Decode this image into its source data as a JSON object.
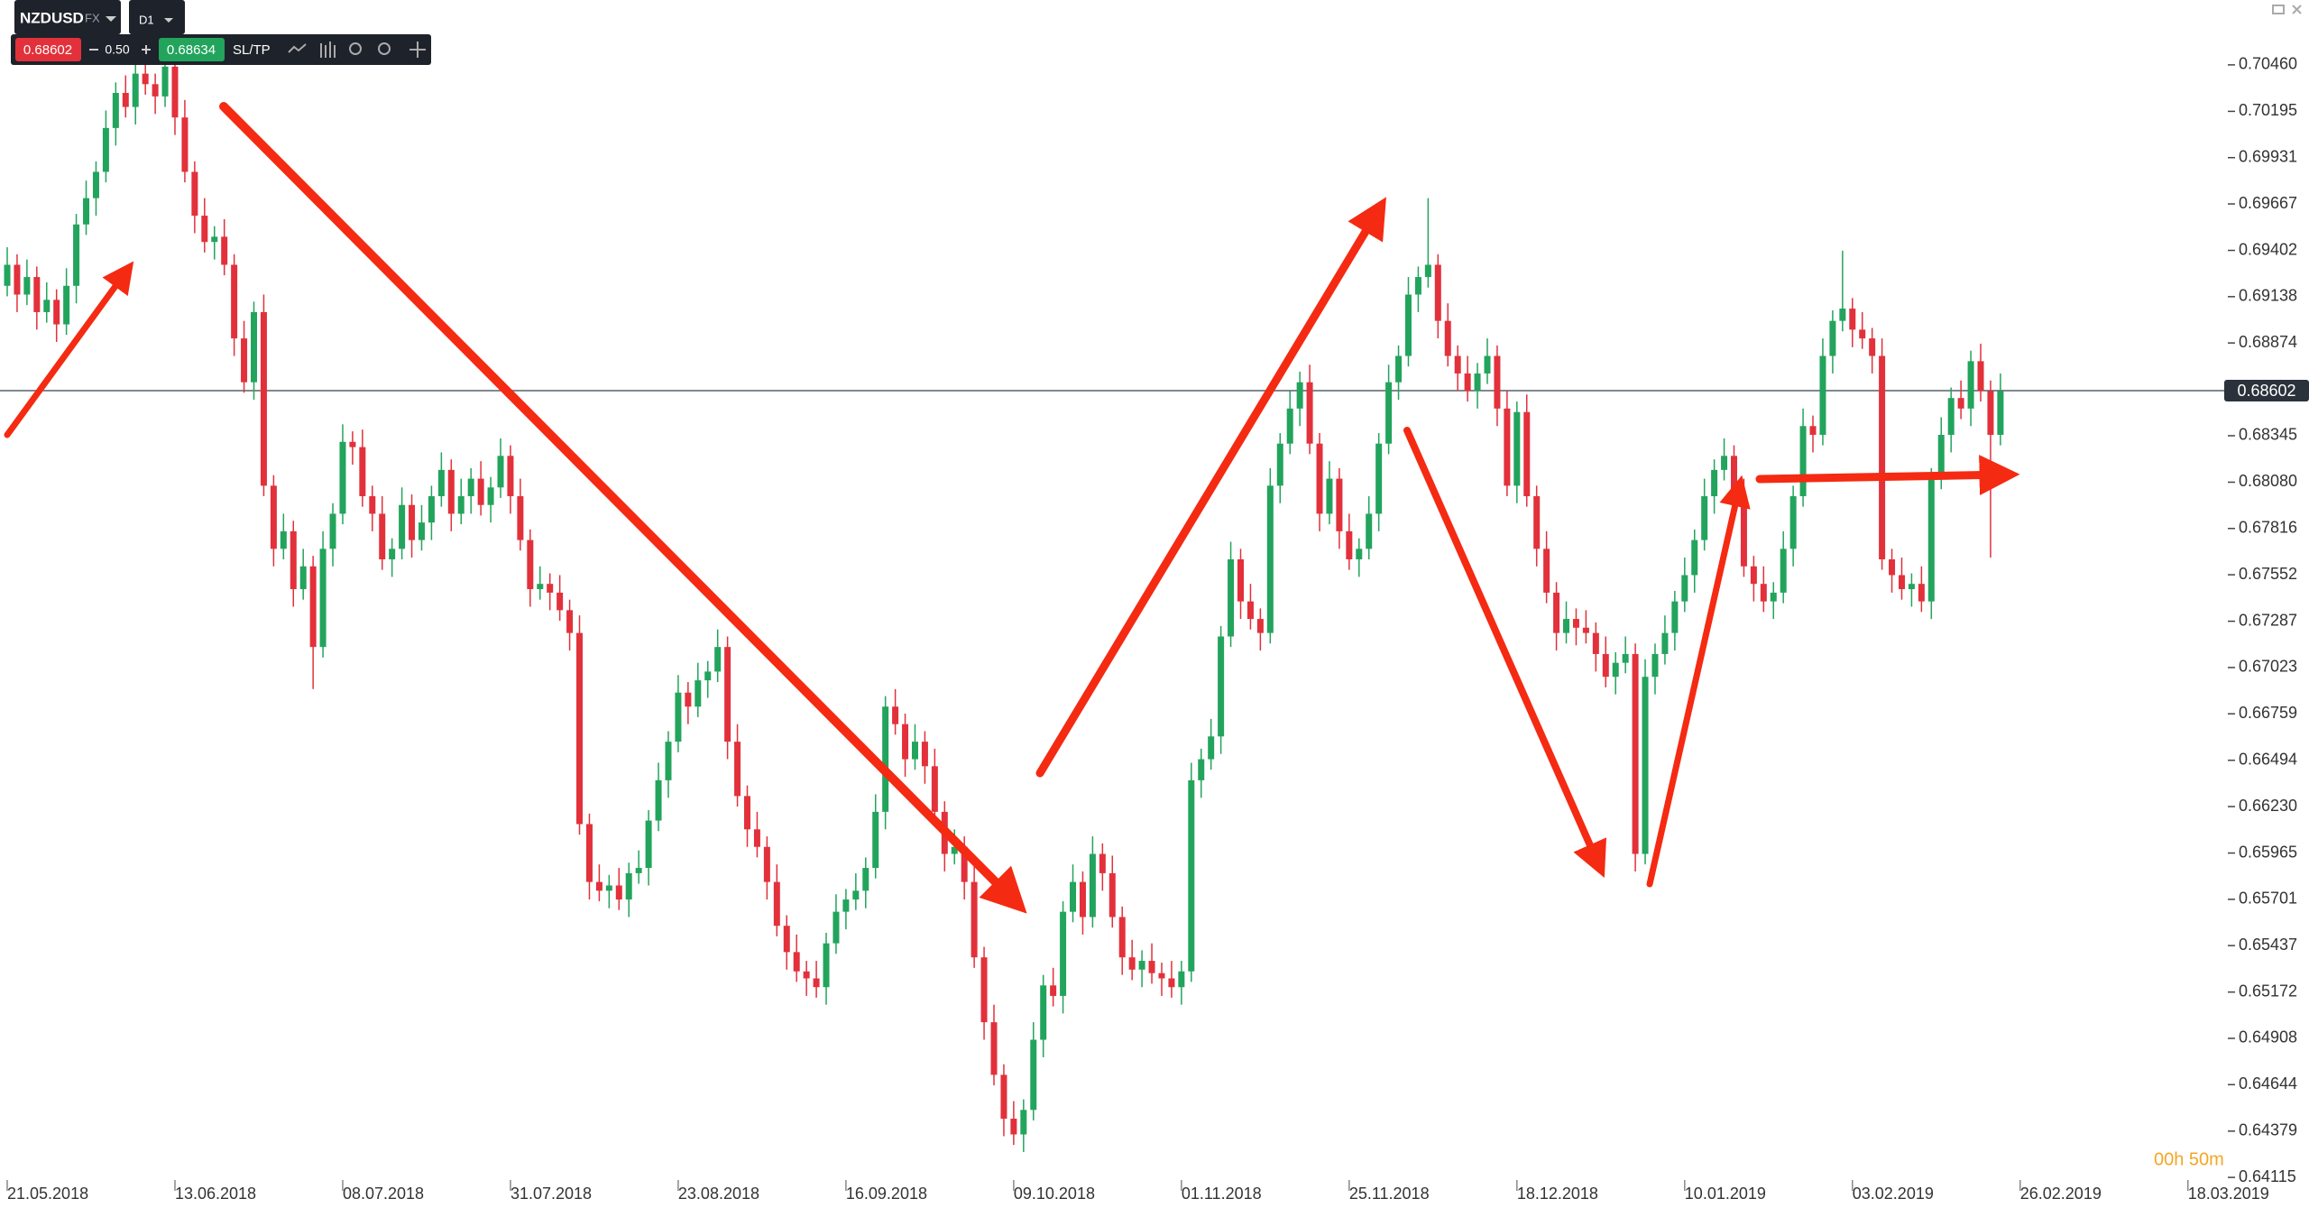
{
  "toolbar": {
    "symbol": "NZDUSD",
    "market": "FX",
    "timeframe": "D1",
    "bid": "0.68602",
    "spread": "0.50",
    "ask": "0.68634",
    "sltp": "SL/TP"
  },
  "timer": "00h 50m",
  "chart_data": {
    "type": "candlestick",
    "up_color": "#22a45d",
    "down_color": "#e2313b",
    "ylim": [
      0.641,
      0.7083
    ],
    "yticks": [
      {
        "value": 0.7046,
        "label": "0.70460"
      },
      {
        "value": 0.70195,
        "label": "0.70195"
      },
      {
        "value": 0.69931,
        "label": "0.69931"
      },
      {
        "value": 0.69667,
        "label": "0.69667"
      },
      {
        "value": 0.69402,
        "label": "0.69402"
      },
      {
        "value": 0.69138,
        "label": "0.69138"
      },
      {
        "value": 0.68874,
        "label": "0.68874"
      },
      {
        "value": 0.68345,
        "label": "0.68345"
      },
      {
        "value": 0.6808,
        "label": "0.68080"
      },
      {
        "value": 0.67816,
        "label": "0.67816"
      },
      {
        "value": 0.67552,
        "label": "0.67552"
      },
      {
        "value": 0.67287,
        "label": "0.67287"
      },
      {
        "value": 0.67023,
        "label": "0.67023"
      },
      {
        "value": 0.66759,
        "label": "0.66759"
      },
      {
        "value": 0.66494,
        "label": "0.66494"
      },
      {
        "value": 0.6623,
        "label": "0.66230"
      },
      {
        "value": 0.65965,
        "label": "0.65965"
      },
      {
        "value": 0.65701,
        "label": "0.65701"
      },
      {
        "value": 0.65437,
        "label": "0.65437"
      },
      {
        "value": 0.65172,
        "label": "0.65172"
      },
      {
        "value": 0.64908,
        "label": "0.64908"
      },
      {
        "value": 0.64644,
        "label": "0.64644"
      },
      {
        "value": 0.64379,
        "label": "0.64379"
      },
      {
        "value": 0.64115,
        "label": "0.64115"
      }
    ],
    "xticks": [
      {
        "value": 0,
        "label": "21.05.2018"
      },
      {
        "value": 17,
        "label": "13.06.2018"
      },
      {
        "value": 34,
        "label": "08.07.2018"
      },
      {
        "value": 51,
        "label": "31.07.2018"
      },
      {
        "value": 68,
        "label": "23.08.2018"
      },
      {
        "value": 85,
        "label": "16.09.2018"
      },
      {
        "value": 102,
        "label": "09.10.2018"
      },
      {
        "value": 119,
        "label": "01.11.2018"
      },
      {
        "value": 136,
        "label": "25.11.2018"
      },
      {
        "value": 153,
        "label": "18.12.2018"
      },
      {
        "value": 170,
        "label": "10.01.2019"
      },
      {
        "value": 187,
        "label": "03.02.2019"
      },
      {
        "value": 204,
        "label": "26.02.2019"
      },
      {
        "value": 221,
        "label": "18.03.2019"
      }
    ],
    "last_price": {
      "value": 0.68602,
      "label": "0.68602"
    },
    "open": [
      0.692,
      0.6932,
      0.6915,
      0.6925,
      0.6905,
      0.6912,
      0.6898,
      0.692,
      0.6955,
      0.697,
      0.6985,
      0.701,
      0.703,
      0.7022,
      0.7041,
      0.7035,
      0.7028,
      0.7045,
      0.7016,
      0.6985,
      0.696,
      0.6945,
      0.6948,
      0.6932,
      0.689,
      0.6865,
      0.6905,
      0.6806,
      0.677,
      0.678,
      0.6747,
      0.676,
      0.6714,
      0.677,
      0.679,
      0.6831,
      0.6828,
      0.68,
      0.679,
      0.6764,
      0.677,
      0.6795,
      0.6775,
      0.6785,
      0.68,
      0.6815,
      0.679,
      0.68,
      0.681,
      0.6795,
      0.6805,
      0.6823,
      0.68,
      0.6775,
      0.6747,
      0.675,
      0.6745,
      0.6735,
      0.6722,
      0.6613,
      0.658,
      0.6575,
      0.6578,
      0.657,
      0.6585,
      0.6588,
      0.6615,
      0.6638,
      0.666,
      0.6688,
      0.668,
      0.6695,
      0.67,
      0.6714,
      0.666,
      0.6629,
      0.661,
      0.66,
      0.658,
      0.6555,
      0.654,
      0.6529,
      0.6525,
      0.652,
      0.6545,
      0.6563,
      0.657,
      0.6575,
      0.6588,
      0.662,
      0.668,
      0.667,
      0.665,
      0.666,
      0.6646,
      0.662,
      0.6596,
      0.66,
      0.658,
      0.6537,
      0.65,
      0.647,
      0.6445,
      0.6436,
      0.645,
      0.649,
      0.6521,
      0.6515,
      0.6563,
      0.658,
      0.656,
      0.6596,
      0.6585,
      0.656,
      0.6537,
      0.653,
      0.6535,
      0.6528,
      0.6525,
      0.652,
      0.6529,
      0.6638,
      0.665,
      0.6663,
      0.672,
      0.6764,
      0.674,
      0.673,
      0.6722,
      0.6806,
      0.683,
      0.685,
      0.6865,
      0.683,
      0.679,
      0.681,
      0.678,
      0.6764,
      0.677,
      0.679,
      0.683,
      0.6865,
      0.688,
      0.6915,
      0.6925,
      0.6932,
      0.69,
      0.688,
      0.687,
      0.686,
      0.687,
      0.688,
      0.685,
      0.6806,
      0.6848,
      0.68,
      0.677,
      0.6745,
      0.6722,
      0.673,
      0.6725,
      0.6722,
      0.671,
      0.6697,
      0.6705,
      0.671,
      0.6596,
      0.6697,
      0.671,
      0.6722,
      0.674,
      0.6755,
      0.6775,
      0.68,
      0.6815,
      0.6823,
      0.68,
      0.676,
      0.675,
      0.674,
      0.6745,
      0.677,
      0.68,
      0.684,
      0.6835,
      0.688,
      0.69,
      0.6907,
      0.6895,
      0.689,
      0.688,
      0.6764,
      0.6755,
      0.6747,
      0.675,
      0.674,
      0.681,
      0.6835,
      0.6856,
      0.685,
      0.6877,
      0.686,
      0.6835
    ],
    "high": [
      0.6942,
      0.6938,
      0.6935,
      0.6931,
      0.6922,
      0.6918,
      0.693,
      0.6961,
      0.698,
      0.6991,
      0.702,
      0.7036,
      0.704,
      0.7047,
      0.7051,
      0.7041,
      0.7055,
      0.7051,
      0.7026,
      0.6991,
      0.697,
      0.6954,
      0.6958,
      0.6938,
      0.69,
      0.6911,
      0.6915,
      0.6812,
      0.679,
      0.6786,
      0.677,
      0.6766,
      0.678,
      0.6796,
      0.6841,
      0.6837,
      0.6838,
      0.6806,
      0.68,
      0.6776,
      0.6805,
      0.6801,
      0.6795,
      0.6806,
      0.6825,
      0.6821,
      0.681,
      0.6816,
      0.682,
      0.6811,
      0.6833,
      0.6829,
      0.681,
      0.6781,
      0.676,
      0.6756,
      0.6755,
      0.6741,
      0.6732,
      0.6619,
      0.659,
      0.6584,
      0.6588,
      0.6591,
      0.6598,
      0.6621,
      0.6648,
      0.6666,
      0.6698,
      0.6694,
      0.6705,
      0.6706,
      0.6724,
      0.672,
      0.667,
      0.6635,
      0.662,
      0.6606,
      0.659,
      0.6561,
      0.655,
      0.6535,
      0.6535,
      0.6551,
      0.6573,
      0.6576,
      0.6585,
      0.6594,
      0.663,
      0.6686,
      0.669,
      0.6676,
      0.667,
      0.6666,
      0.6656,
      0.6626,
      0.661,
      0.6606,
      0.659,
      0.6543,
      0.651,
      0.6476,
      0.6455,
      0.6456,
      0.65,
      0.6527,
      0.6531,
      0.6569,
      0.659,
      0.6586,
      0.6606,
      0.6602,
      0.6595,
      0.6566,
      0.6547,
      0.6541,
      0.6545,
      0.6534,
      0.6535,
      0.6535,
      0.6648,
      0.6656,
      0.6673,
      0.6726,
      0.6774,
      0.677,
      0.675,
      0.6736,
      0.6816,
      0.6836,
      0.686,
      0.6871,
      0.6875,
      0.6836,
      0.682,
      0.6816,
      0.679,
      0.6776,
      0.68,
      0.6836,
      0.6875,
      0.6886,
      0.6925,
      0.6931,
      0.697,
      0.6938,
      0.691,
      0.6886,
      0.688,
      0.6876,
      0.689,
      0.6886,
      0.686,
      0.6854,
      0.6858,
      0.6806,
      0.678,
      0.6751,
      0.674,
      0.6736,
      0.6735,
      0.6728,
      0.672,
      0.6711,
      0.672,
      0.6716,
      0.6707,
      0.6716,
      0.6732,
      0.6746,
      0.6765,
      0.6781,
      0.681,
      0.6821,
      0.6833,
      0.6829,
      0.681,
      0.6766,
      0.676,
      0.6751,
      0.678,
      0.6806,
      0.685,
      0.6846,
      0.689,
      0.6906,
      0.694,
      0.6913,
      0.6905,
      0.6896,
      0.689,
      0.677,
      0.6765,
      0.6756,
      0.676,
      0.6816,
      0.6845,
      0.6862,
      0.6866,
      0.6883,
      0.6887,
      0.6866,
      0.687
    ],
    "low": [
      0.6914,
      0.6905,
      0.6909,
      0.6895,
      0.6899,
      0.6888,
      0.6892,
      0.691,
      0.6949,
      0.696,
      0.6979,
      0.7,
      0.7016,
      0.7012,
      0.7029,
      0.7018,
      0.7022,
      0.7006,
      0.6979,
      0.695,
      0.6939,
      0.6935,
      0.6926,
      0.688,
      0.6859,
      0.6855,
      0.68,
      0.676,
      0.6764,
      0.6737,
      0.6741,
      0.669,
      0.6708,
      0.676,
      0.6784,
      0.6818,
      0.6794,
      0.678,
      0.6758,
      0.6754,
      0.6764,
      0.6765,
      0.6769,
      0.6775,
      0.6794,
      0.678,
      0.6784,
      0.679,
      0.6789,
      0.6785,
      0.6799,
      0.679,
      0.6769,
      0.6737,
      0.6741,
      0.6735,
      0.6729,
      0.6712,
      0.6607,
      0.657,
      0.6569,
      0.6565,
      0.6564,
      0.656,
      0.6579,
      0.6578,
      0.6609,
      0.6628,
      0.6654,
      0.667,
      0.6674,
      0.6685,
      0.6694,
      0.665,
      0.6623,
      0.66,
      0.6594,
      0.657,
      0.6549,
      0.653,
      0.6523,
      0.6515,
      0.6514,
      0.651,
      0.6539,
      0.6553,
      0.6564,
      0.6565,
      0.6582,
      0.661,
      0.6664,
      0.664,
      0.6644,
      0.6636,
      0.6614,
      0.6586,
      0.659,
      0.657,
      0.6531,
      0.649,
      0.6464,
      0.6435,
      0.643,
      0.6426,
      0.6444,
      0.648,
      0.6509,
      0.6505,
      0.6557,
      0.655,
      0.6554,
      0.6575,
      0.6554,
      0.6527,
      0.6524,
      0.652,
      0.6522,
      0.6515,
      0.6514,
      0.651,
      0.6523,
      0.6628,
      0.6644,
      0.6653,
      0.6714,
      0.673,
      0.6724,
      0.6712,
      0.6716,
      0.6796,
      0.6824,
      0.684,
      0.6824,
      0.678,
      0.6784,
      0.677,
      0.6758,
      0.6754,
      0.6764,
      0.678,
      0.6824,
      0.6855,
      0.6874,
      0.6905,
      0.6919,
      0.689,
      0.6874,
      0.686,
      0.6854,
      0.685,
      0.6864,
      0.684,
      0.68,
      0.6796,
      0.6794,
      0.676,
      0.6739,
      0.6712,
      0.6716,
      0.6715,
      0.6716,
      0.67,
      0.6691,
      0.6687,
      0.6699,
      0.6586,
      0.659,
      0.6687,
      0.6704,
      0.6712,
      0.6734,
      0.6745,
      0.6769,
      0.679,
      0.6809,
      0.679,
      0.6754,
      0.674,
      0.6734,
      0.673,
      0.6739,
      0.676,
      0.6794,
      0.6825,
      0.6829,
      0.687,
      0.6894,
      0.6885,
      0.6884,
      0.687,
      0.6758,
      0.6745,
      0.6741,
      0.6737,
      0.6734,
      0.673,
      0.6804,
      0.6825,
      0.6844,
      0.684,
      0.6854,
      0.6765,
      0.6829
    ],
    "close": [
      0.6932,
      0.6915,
      0.6925,
      0.6905,
      0.6912,
      0.6898,
      0.692,
      0.6955,
      0.697,
      0.6985,
      0.701,
      0.703,
      0.7022,
      0.7041,
      0.7035,
      0.7028,
      0.7045,
      0.7016,
      0.6985,
      0.696,
      0.6945,
      0.6948,
      0.6932,
      0.689,
      0.6865,
      0.6905,
      0.6806,
      0.677,
      0.678,
      0.6747,
      0.676,
      0.6714,
      0.677,
      0.679,
      0.6831,
      0.6828,
      0.68,
      0.679,
      0.6764,
      0.677,
      0.6795,
      0.6775,
      0.6785,
      0.68,
      0.6815,
      0.679,
      0.68,
      0.681,
      0.6795,
      0.6805,
      0.6823,
      0.68,
      0.6775,
      0.6747,
      0.675,
      0.6745,
      0.6735,
      0.6722,
      0.6613,
      0.658,
      0.6575,
      0.6578,
      0.657,
      0.6585,
      0.6588,
      0.6615,
      0.6638,
      0.666,
      0.6688,
      0.668,
      0.6695,
      0.67,
      0.6714,
      0.666,
      0.6629,
      0.661,
      0.66,
      0.658,
      0.6555,
      0.654,
      0.6529,
      0.6525,
      0.652,
      0.6545,
      0.6563,
      0.657,
      0.6575,
      0.6588,
      0.662,
      0.668,
      0.667,
      0.665,
      0.666,
      0.6646,
      0.662,
      0.6596,
      0.66,
      0.658,
      0.6537,
      0.65,
      0.647,
      0.6445,
      0.6436,
      0.645,
      0.649,
      0.6521,
      0.6515,
      0.6563,
      0.658,
      0.656,
      0.6596,
      0.6585,
      0.656,
      0.6537,
      0.653,
      0.6535,
      0.6528,
      0.6525,
      0.652,
      0.6529,
      0.6638,
      0.665,
      0.6663,
      0.672,
      0.6764,
      0.674,
      0.673,
      0.6722,
      0.6806,
      0.683,
      0.685,
      0.6865,
      0.683,
      0.679,
      0.681,
      0.678,
      0.6764,
      0.677,
      0.679,
      0.683,
      0.6865,
      0.688,
      0.6915,
      0.6925,
      0.6932,
      0.69,
      0.688,
      0.687,
      0.686,
      0.687,
      0.688,
      0.685,
      0.6806,
      0.6848,
      0.68,
      0.677,
      0.6745,
      0.6722,
      0.673,
      0.6725,
      0.6722,
      0.671,
      0.6697,
      0.6705,
      0.671,
      0.6596,
      0.6697,
      0.671,
      0.6722,
      0.674,
      0.6755,
      0.6775,
      0.68,
      0.6815,
      0.6823,
      0.68,
      0.676,
      0.675,
      0.674,
      0.6745,
      0.677,
      0.68,
      0.684,
      0.6835,
      0.688,
      0.69,
      0.6907,
      0.6895,
      0.689,
      0.688,
      0.6764,
      0.6755,
      0.6747,
      0.675,
      0.674,
      0.681,
      0.6835,
      0.6856,
      0.685,
      0.6877,
      0.686,
      0.6835,
      0.686
    ]
  }
}
